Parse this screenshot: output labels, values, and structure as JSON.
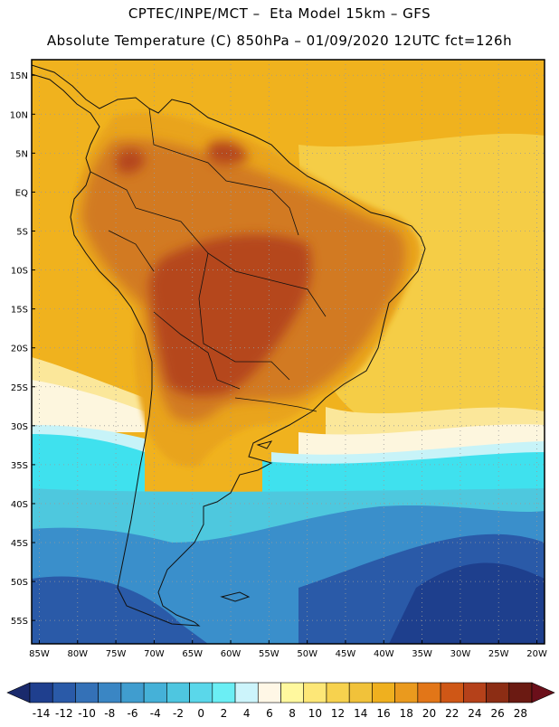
{
  "header": {
    "title_line1": "CPTEC/INPE/MCT –  Eta Model 15km – GFS",
    "title_line2": "Absolute Temperature (C) 850hPa – 01/09/2020 12UTC fct=126h"
  },
  "map": {
    "lat_labels": [
      "15N",
      "10N",
      "5N",
      "EQ",
      "5S",
      "10S",
      "15S",
      "20S",
      "25S",
      "30S",
      "35S",
      "40S",
      "45S",
      "50S",
      "55S"
    ],
    "lon_labels": [
      "85W",
      "80W",
      "75W",
      "70W",
      "65W",
      "60W",
      "55W",
      "50W",
      "45W",
      "40W",
      "35W",
      "30W",
      "25W",
      "20W"
    ],
    "field_palette": {
      "hot_core": "#b5471e",
      "warm": "#d27a22",
      "mid": "#e9a41f",
      "ocean_warm": "#f0b21e",
      "ocean_light": "#f5cd46",
      "pale": "#fbe79a",
      "cream": "#fdf6de",
      "cyan_light": "#c7f3f8",
      "cyan": "#3fe1ee",
      "teal": "#4ec8de",
      "blue_mid": "#3a8fcb",
      "blue_deep": "#2a5aa8",
      "blue_dark": "#1e3f8d"
    }
  },
  "colorbar": {
    "ticks": [
      "-14",
      "-12",
      "-10",
      "-8",
      "-6",
      "-4",
      "-2",
      "0",
      "2",
      "4",
      "6",
      "8",
      "10",
      "12",
      "14",
      "16",
      "18",
      "20",
      "22",
      "24",
      "26",
      "28"
    ],
    "colors": [
      "#1f3f8e",
      "#2a5aa8",
      "#3471b7",
      "#3a86c4",
      "#409dcf",
      "#45b1d8",
      "#4ec6e0",
      "#5ad7ea",
      "#6beef4",
      "#ccf4fb",
      "#fff7e6",
      "#fff89e",
      "#fde777",
      "#f7d24e",
      "#f1c23a",
      "#efb01f",
      "#ea9a1e",
      "#e27618",
      "#cf5716",
      "#b5411a",
      "#8c2d14",
      "#6b1a12"
    ],
    "end_low": "#1a2a6c",
    "end_high": "#6b0f1a"
  }
}
